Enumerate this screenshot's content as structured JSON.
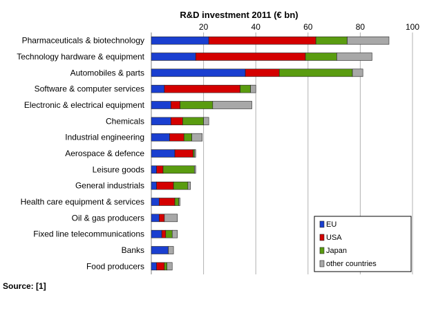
{
  "source_text": "Source: [1]",
  "chart_data": {
    "type": "bar",
    "orientation": "horizontal",
    "stacked": true,
    "title": "R&D investment 2011 (€ bn)",
    "xlabel": "",
    "ylabel": "",
    "xlim": [
      0,
      100
    ],
    "xticks": [
      "20",
      "40",
      "60",
      "80",
      "100"
    ],
    "grid": true,
    "legend_position": "bottom-right",
    "categories": [
      "Pharmaceuticals & biotechnology",
      "Technology hardware & equipment",
      "Automobiles & parts",
      "Software & computer services",
      "Electronic & electrical equipment",
      "Chemicals",
      "Industrial engineering",
      "Aerospace & defence",
      "Leisure goods",
      "General industrials",
      "Health care equipment & services",
      "Oil & gas producers",
      "Fixed line telecommunications",
      "Banks",
      "Food producers"
    ],
    "series": [
      {
        "name": "EU",
        "color": "#1a3fd0",
        "values": [
          22,
          17,
          36,
          5,
          7.5,
          7.5,
          7,
          9,
          2,
          2,
          3,
          3,
          4,
          6.5,
          2
        ]
      },
      {
        "name": "USA",
        "color": "#d40000",
        "values": [
          41,
          42,
          13,
          29,
          3.5,
          4.5,
          5.5,
          7,
          2.5,
          6.5,
          6,
          2,
          1.5,
          0,
          3
        ]
      },
      {
        "name": "Japan",
        "color": "#5a9c10",
        "values": [
          12,
          12,
          28,
          4,
          12.5,
          8,
          3,
          0.5,
          12,
          5.5,
          1.5,
          0,
          2.5,
          0,
          1
        ]
      },
      {
        "name": "other countries",
        "color": "#a8a8a8",
        "values": [
          16,
          13.5,
          4,
          2,
          15,
          2,
          4,
          0.5,
          0.5,
          1,
          0.5,
          5,
          2,
          2,
          2
        ]
      }
    ]
  }
}
